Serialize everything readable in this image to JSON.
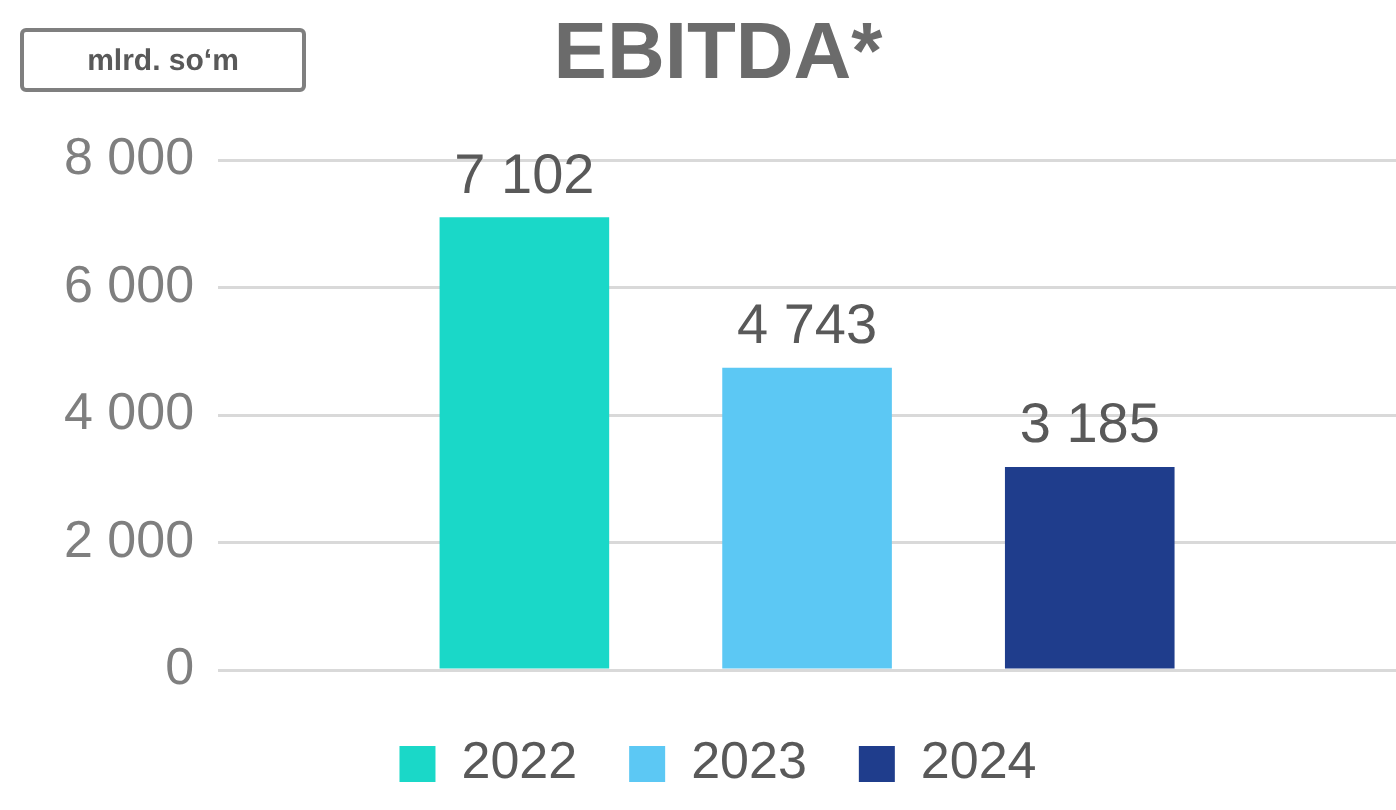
{
  "chart_data": {
    "type": "bar",
    "title": "EBITDA*",
    "annotations": [
      "mlrd. so‘m"
    ],
    "categories": [
      null
    ],
    "series": [
      {
        "name": "2022",
        "color": "#1ad8c8",
        "values": [
          7102
        ],
        "value_labels": [
          "7 102"
        ]
      },
      {
        "name": "2023",
        "color": "#5cc8f4",
        "values": [
          4743
        ],
        "value_labels": [
          "4 743"
        ]
      },
      {
        "name": "2024",
        "color": "#1f3d8c",
        "values": [
          3185
        ],
        "value_labels": [
          "3 185"
        ]
      }
    ],
    "ylim": [
      0,
      8000
    ],
    "yticks": [
      {
        "value": 0,
        "label": "0"
      },
      {
        "value": 2000,
        "label": "2 000"
      },
      {
        "value": 4000,
        "label": "4 000"
      },
      {
        "value": 6000,
        "label": "6 000"
      },
      {
        "value": 8000,
        "label": "8 000"
      }
    ],
    "grid": "y",
    "legend": "bottom"
  }
}
